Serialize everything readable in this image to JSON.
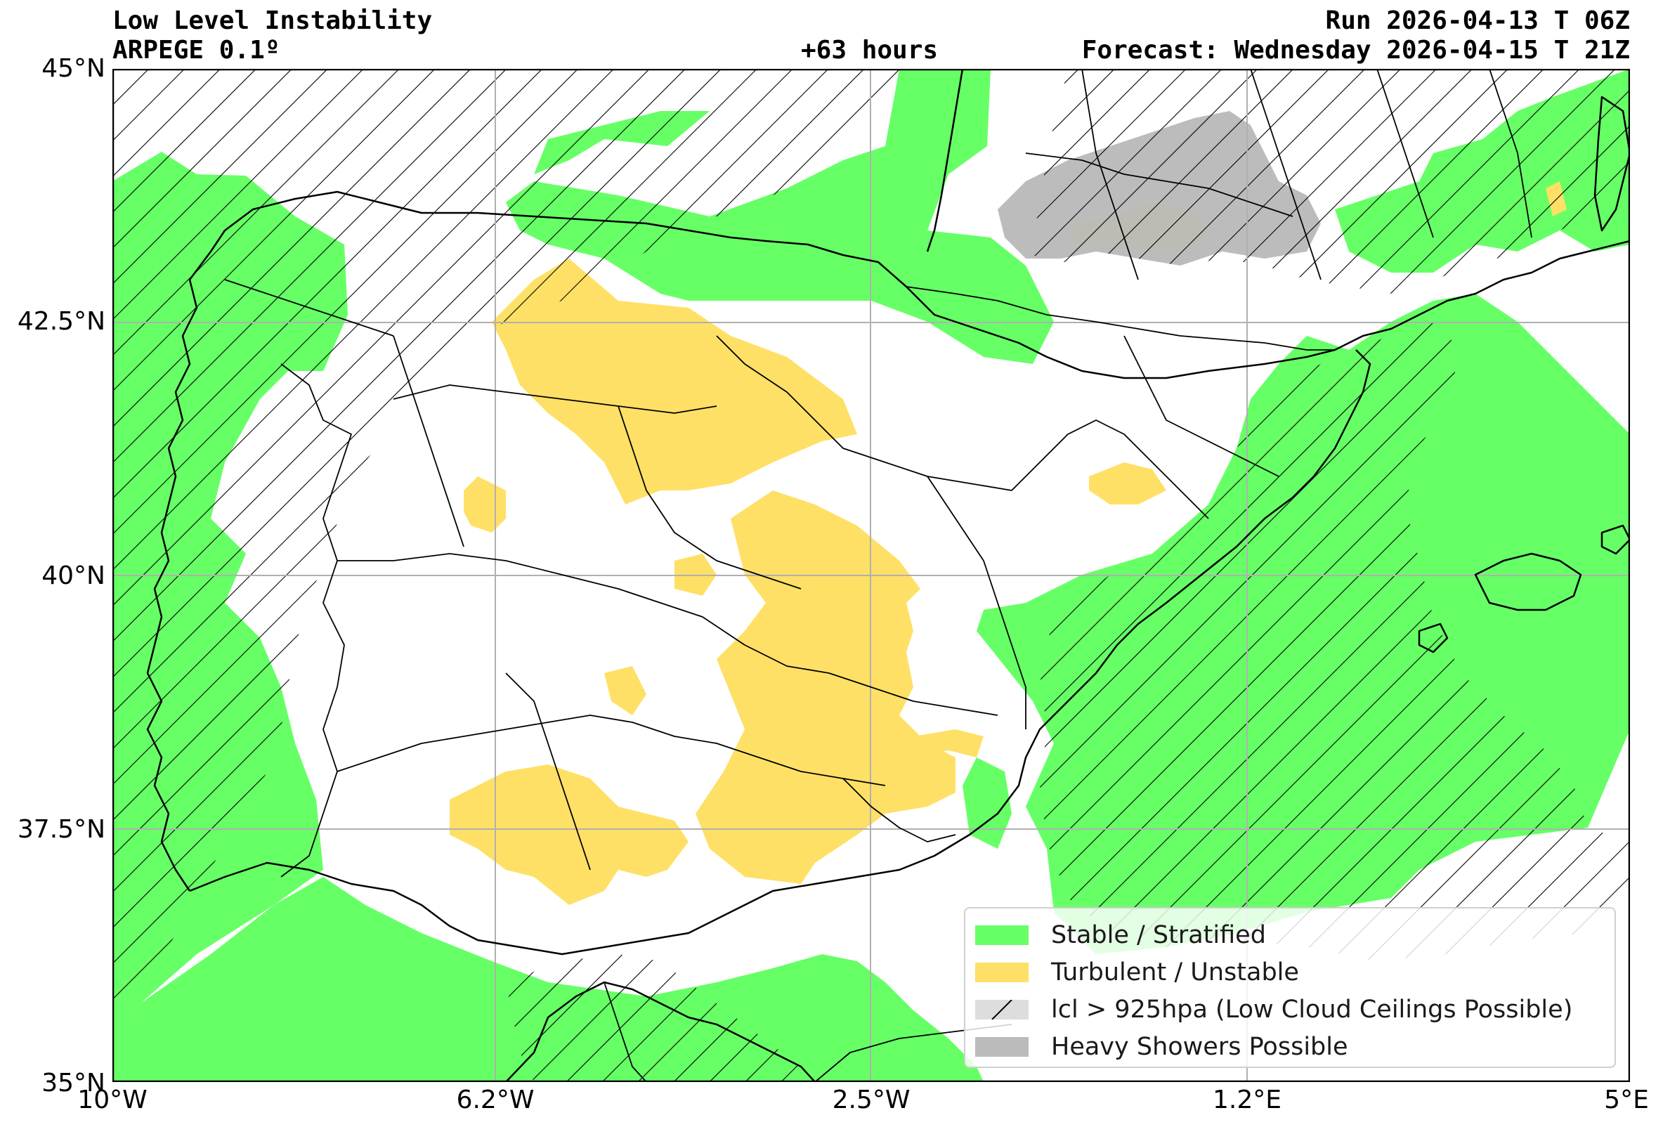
{
  "header": {
    "title": "Low Level Instability",
    "model": "ARPEGE 0.1º",
    "lead": "+63 hours",
    "run": "Run 2026-04-13 T 06Z",
    "forecast": "Forecast: Wednesday 2026-04-15 T 21Z"
  },
  "axes": {
    "lat_ticks": [
      "45°N",
      "42.5°N",
      "40°N",
      "37.5°N",
      "35°N"
    ],
    "lon_ticks": [
      "10°W",
      "6.2°W",
      "2.5°W",
      "1.2°E",
      "5°E"
    ],
    "lat_range": [
      35,
      45
    ],
    "lon_range": [
      -10,
      5
    ],
    "grid": true
  },
  "legend": {
    "items": [
      {
        "label": "Stable / Stratified",
        "color": "#66ff66",
        "pattern": "solid"
      },
      {
        "label": "Turbulent / Unstable",
        "color": "#ffe066",
        "pattern": "solid"
      },
      {
        "label": "lcl > 925hpa (Low Cloud Ceilings Possible)",
        "color": "#dddddd",
        "pattern": "hatch"
      },
      {
        "label": "Heavy Showers Possible",
        "color": "#bbbbbb",
        "pattern": "solid"
      }
    ]
  },
  "colors": {
    "stable": "#66ff66",
    "turbulent": "#ffe066",
    "showers": "#b8b8b8",
    "hatch": "#000000",
    "grid": "#b0b0b0"
  }
}
